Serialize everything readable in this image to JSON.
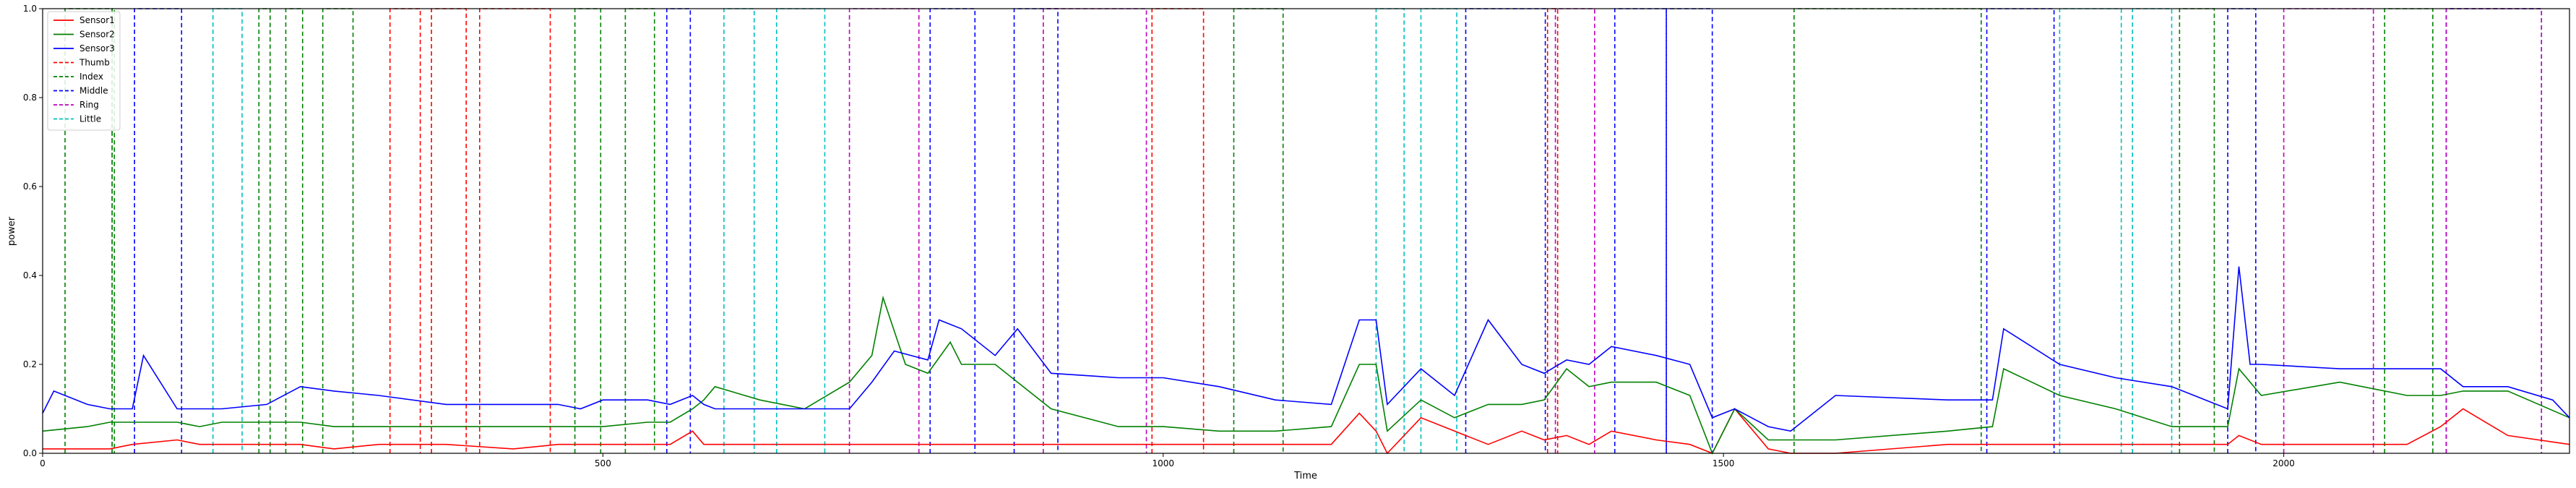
{
  "chart_data": {
    "type": "line",
    "title": "",
    "xlabel": "Time",
    "ylabel": "power",
    "xlim": [
      0,
      2255
    ],
    "ylim": [
      0,
      1.0
    ],
    "xticks": [
      0,
      500,
      1000,
      1500,
      2000
    ],
    "yticks": [
      0.0,
      0.2,
      0.4,
      0.6,
      0.8,
      1.0
    ],
    "xtick_labels": [
      "0",
      "500",
      "1000",
      "1500",
      "2000"
    ],
    "ytick_labels": [
      "0.0",
      "0.2",
      "0.4",
      "0.6",
      "0.8",
      "1.0"
    ],
    "grid": false,
    "legend_position": "upper-left",
    "legend": [
      {
        "label": "Sensor1",
        "color": "#ff0000",
        "style": "solid"
      },
      {
        "label": "Sensor2",
        "color": "#008000",
        "style": "solid"
      },
      {
        "label": "Sensor3",
        "color": "#0000ff",
        "style": "solid"
      },
      {
        "label": "Thumb",
        "color": "#ff0000",
        "style": "dashed"
      },
      {
        "label": "Index",
        "color": "#008000",
        "style": "dashed"
      },
      {
        "label": "Middle",
        "color": "#0000ff",
        "style": "dashed"
      },
      {
        "label": "Ring",
        "color": "#bf00bf",
        "style": "dashed"
      },
      {
        "label": "Little",
        "color": "#00bfbf",
        "style": "dashed"
      }
    ],
    "series": [
      {
        "name": "Sensor1",
        "color": "#ff0000",
        "style": "solid",
        "x": [
          0,
          40,
          60,
          80,
          120,
          140,
          160,
          200,
          230,
          260,
          300,
          360,
          420,
          460,
          500,
          560,
          580,
          590,
          600,
          640,
          700,
          720,
          760,
          790,
          810,
          850,
          900,
          960,
          1000,
          1050,
          1100,
          1150,
          1175,
          1190,
          1200,
          1230,
          1260,
          1290,
          1320,
          1340,
          1360,
          1380,
          1400,
          1440,
          1470,
          1490,
          1510,
          1540,
          1560,
          1600,
          1700,
          1750,
          1800,
          1850,
          1900,
          1950,
          1960,
          1980,
          2050,
          2110,
          2140,
          2160,
          2200,
          2255
        ],
        "y": [
          0.01,
          0.01,
          0.01,
          0.02,
          0.03,
          0.02,
          0.02,
          0.02,
          0.02,
          0.01,
          0.02,
          0.02,
          0.01,
          0.02,
          0.02,
          0.02,
          0.05,
          0.02,
          0.02,
          0.02,
          0.02,
          0.02,
          0.02,
          0.02,
          0.02,
          0.02,
          0.02,
          0.02,
          0.02,
          0.02,
          0.02,
          0.02,
          0.09,
          0.05,
          0.0,
          0.08,
          0.05,
          0.02,
          0.05,
          0.03,
          0.04,
          0.02,
          0.05,
          0.03,
          0.02,
          0.0,
          0.1,
          0.01,
          0.0,
          0.0,
          0.02,
          0.02,
          0.02,
          0.02,
          0.02,
          0.02,
          0.04,
          0.02,
          0.02,
          0.02,
          0.06,
          0.1,
          0.04,
          0.02
        ]
      },
      {
        "name": "Sensor2",
        "color": "#008000",
        "style": "solid",
        "x": [
          0,
          40,
          60,
          80,
          120,
          140,
          160,
          200,
          230,
          260,
          300,
          360,
          420,
          460,
          480,
          500,
          540,
          560,
          580,
          590,
          600,
          640,
          680,
          720,
          740,
          750,
          770,
          790,
          810,
          820,
          850,
          870,
          900,
          960,
          1000,
          1050,
          1100,
          1150,
          1175,
          1190,
          1200,
          1230,
          1260,
          1290,
          1320,
          1340,
          1360,
          1380,
          1400,
          1440,
          1470,
          1490,
          1510,
          1540,
          1560,
          1600,
          1700,
          1740,
          1750,
          1800,
          1850,
          1900,
          1950,
          1960,
          1980,
          2050,
          2110,
          2140,
          2160,
          2200,
          2255
        ],
        "y": [
          0.05,
          0.06,
          0.07,
          0.07,
          0.07,
          0.06,
          0.07,
          0.07,
          0.07,
          0.06,
          0.06,
          0.06,
          0.06,
          0.06,
          0.06,
          0.06,
          0.07,
          0.07,
          0.1,
          0.12,
          0.15,
          0.12,
          0.1,
          0.16,
          0.22,
          0.35,
          0.2,
          0.18,
          0.25,
          0.2,
          0.2,
          0.16,
          0.1,
          0.06,
          0.06,
          0.05,
          0.05,
          0.06,
          0.2,
          0.2,
          0.05,
          0.12,
          0.08,
          0.11,
          0.11,
          0.12,
          0.19,
          0.15,
          0.16,
          0.16,
          0.13,
          0.0,
          0.1,
          0.03,
          0.03,
          0.03,
          0.05,
          0.06,
          0.19,
          0.13,
          0.1,
          0.06,
          0.06,
          0.19,
          0.13,
          0.16,
          0.13,
          0.13,
          0.14,
          0.14,
          0.08
        ]
      },
      {
        "name": "Sensor3",
        "color": "#0000ff",
        "style": "solid",
        "x": [
          0,
          10,
          40,
          60,
          80,
          90,
          120,
          140,
          160,
          200,
          230,
          260,
          300,
          360,
          420,
          460,
          480,
          500,
          540,
          560,
          580,
          590,
          600,
          640,
          680,
          720,
          740,
          760,
          790,
          800,
          820,
          850,
          870,
          900,
          960,
          1000,
          1050,
          1100,
          1150,
          1175,
          1190,
          1200,
          1230,
          1260,
          1290,
          1320,
          1340,
          1360,
          1380,
          1400,
          1440,
          1470,
          1490,
          1510,
          1540,
          1560,
          1600,
          1700,
          1740,
          1750,
          1800,
          1850,
          1900,
          1950,
          1960,
          1970,
          1980,
          2050,
          2110,
          2140,
          2160,
          2200,
          2240,
          2255
        ],
        "y": [
          0.09,
          0.14,
          0.11,
          0.1,
          0.1,
          0.22,
          0.1,
          0.1,
          0.1,
          0.11,
          0.15,
          0.14,
          0.13,
          0.11,
          0.11,
          0.11,
          0.1,
          0.12,
          0.12,
          0.11,
          0.13,
          0.11,
          0.1,
          0.1,
          0.1,
          0.1,
          0.16,
          0.23,
          0.21,
          0.3,
          0.28,
          0.22,
          0.28,
          0.18,
          0.17,
          0.17,
          0.15,
          0.12,
          0.11,
          0.3,
          0.3,
          0.11,
          0.19,
          0.13,
          0.3,
          0.2,
          0.18,
          0.21,
          0.2,
          0.24,
          0.22,
          0.2,
          0.08,
          0.1,
          0.06,
          0.05,
          0.13,
          0.12,
          0.12,
          0.28,
          0.2,
          0.17,
          0.15,
          0.1,
          0.42,
          0.2,
          0.2,
          0.19,
          0.19,
          0.19,
          0.15,
          0.15,
          0.12,
          0.08
        ]
      }
    ],
    "label_intervals": [
      {
        "name": "Index",
        "color": "#008000",
        "segments": [
          [
            20,
            62
          ],
          [
            62,
            64
          ],
          [
            193,
            203
          ],
          [
            217,
            232
          ],
          [
            250,
            277
          ],
          [
            475,
            498
          ],
          [
            520,
            546
          ],
          [
            1063,
            1107
          ],
          [
            1563,
            1730
          ],
          [
            1907,
            1938
          ],
          [
            2090,
            2133
          ]
        ]
      },
      {
        "name": "Middle",
        "color": "#0000ff",
        "segments": [
          [
            82,
            124
          ],
          [
            557,
            578
          ],
          [
            792,
            832
          ],
          [
            867,
            906
          ],
          [
            1270,
            1341
          ],
          [
            1403,
            1449
          ],
          [
            1449,
            1490
          ],
          [
            1735,
            1795
          ],
          [
            1950,
            1975
          ],
          [
            2145,
            2230
          ]
        ]
      },
      {
        "name": "Little",
        "color": "#00bfbf",
        "segments": [
          [
            152,
            178
          ],
          [
            608,
            635
          ],
          [
            655,
            698
          ],
          [
            1190,
            1215
          ],
          [
            1230,
            1262
          ],
          [
            1800,
            1855
          ],
          [
            1865,
            1900
          ]
        ]
      },
      {
        "name": "Thumb",
        "color": "#ff0000",
        "segments": [
          [
            310,
            337
          ],
          [
            347,
            378
          ],
          [
            390,
            453
          ],
          [
            990,
            1036
          ],
          [
            1343,
            1352
          ]
        ]
      },
      {
        "name": "Ring",
        "color": "#bf00bf",
        "segments": [
          [
            720,
            782
          ],
          [
            893,
            985
          ],
          [
            1350,
            1385
          ],
          [
            2000,
            2080
          ],
          [
            2145,
            2230
          ]
        ]
      }
    ]
  }
}
